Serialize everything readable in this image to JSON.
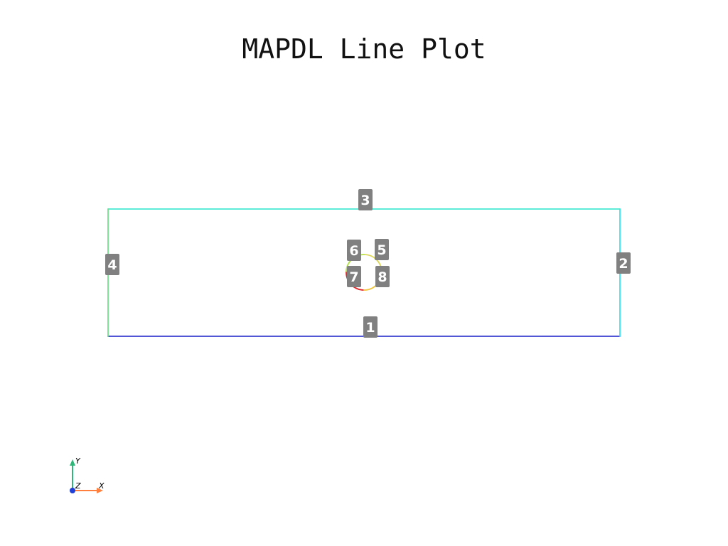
{
  "title": "MAPDL Line Plot",
  "lines": [
    {
      "id": "1",
      "label": "1",
      "color": "#3a3fd0"
    },
    {
      "id": "2",
      "label": "2",
      "color": "#36e4f2"
    },
    {
      "id": "3",
      "label": "3",
      "color": "#45e9d2"
    },
    {
      "id": "4",
      "label": "4",
      "color": "#6fe08a"
    },
    {
      "id": "5",
      "label": "5",
      "color": "#ddd85a"
    },
    {
      "id": "6",
      "label": "6",
      "color": "#b2e24a"
    },
    {
      "id": "7",
      "label": "7",
      "color": "#e3262a"
    },
    {
      "id": "8",
      "label": "8",
      "color": "#f0c63e"
    }
  ],
  "axes_triad": {
    "x_label": "X",
    "y_label": "Y",
    "z_label": "Z",
    "x_color": "#ff7f3f",
    "y_color": "#2fb77a",
    "z_color": "#1f3fd6"
  }
}
